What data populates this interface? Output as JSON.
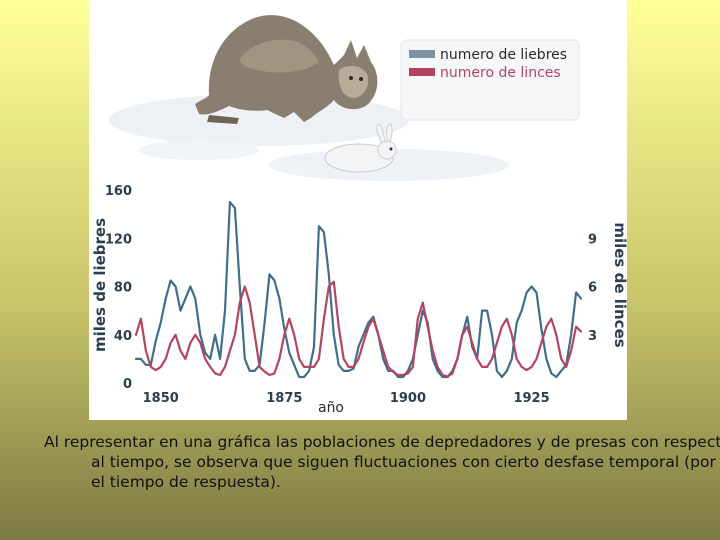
{
  "caption": "Al representar en una gráfica las poblaciones de depredadores y de presas con respecto al tiempo, se observa que siguen fluctuaciones con cierto desfase temporal (por el tiempo de respuesta).",
  "chart_data": {
    "type": "line",
    "title": "",
    "xlabel": "año",
    "ylabel": "miles de liebres",
    "y2label": "miles de linces",
    "xlim": [
      1845,
      1935
    ],
    "ylim": [
      0,
      160
    ],
    "y2lim": [
      0,
      12
    ],
    "xticks": [
      1850,
      1875,
      1900,
      1925
    ],
    "yticks": [
      0,
      40,
      80,
      120,
      160
    ],
    "y2ticks": [
      3,
      6,
      9
    ],
    "grid": false,
    "legend": "top-right",
    "series": [
      {
        "name": "numero de liebres",
        "axis": "left",
        "color": "#3f6f8c",
        "x": [
          1845,
          1846,
          1847,
          1848,
          1849,
          1850,
          1851,
          1852,
          1853,
          1854,
          1855,
          1856,
          1857,
          1858,
          1859,
          1860,
          1861,
          1862,
          1863,
          1864,
          1865,
          1866,
          1867,
          1868,
          1869,
          1870,
          1871,
          1872,
          1873,
          1874,
          1875,
          1876,
          1877,
          1878,
          1879,
          1880,
          1881,
          1882,
          1883,
          1884,
          1885,
          1886,
          1887,
          1888,
          1889,
          1890,
          1891,
          1892,
          1893,
          1894,
          1895,
          1896,
          1897,
          1898,
          1899,
          1900,
          1901,
          1902,
          1903,
          1904,
          1905,
          1906,
          1907,
          1908,
          1909,
          1910,
          1911,
          1912,
          1913,
          1914,
          1915,
          1916,
          1917,
          1918,
          1919,
          1920,
          1921,
          1922,
          1923,
          1924,
          1925,
          1926,
          1927,
          1928,
          1929,
          1930,
          1931,
          1932,
          1933,
          1934,
          1935
        ],
        "values": [
          20,
          20,
          15,
          15,
          35,
          50,
          70,
          85,
          80,
          60,
          70,
          80,
          70,
          40,
          25,
          20,
          40,
          20,
          60,
          150,
          145,
          80,
          20,
          10,
          10,
          15,
          50,
          90,
          85,
          70,
          45,
          25,
          15,
          5,
          5,
          10,
          30,
          130,
          125,
          90,
          40,
          15,
          10,
          10,
          12,
          30,
          40,
          50,
          55,
          40,
          20,
          10,
          10,
          5,
          5,
          10,
          20,
          40,
          60,
          50,
          20,
          10,
          5,
          5,
          10,
          20,
          40,
          55,
          30,
          20,
          60,
          60,
          40,
          10,
          5,
          10,
          20,
          50,
          60,
          75,
          80,
          75,
          45,
          20,
          8,
          5,
          10,
          15,
          40,
          75,
          70
        ]
      },
      {
        "name": "numero de linces",
        "axis": "right",
        "color": "#b5445f",
        "x": [
          1845,
          1846,
          1847,
          1848,
          1849,
          1850,
          1851,
          1852,
          1853,
          1854,
          1855,
          1856,
          1857,
          1858,
          1859,
          1860,
          1861,
          1862,
          1863,
          1864,
          1865,
          1866,
          1867,
          1868,
          1869,
          1870,
          1871,
          1872,
          1873,
          1874,
          1875,
          1876,
          1877,
          1878,
          1879,
          1880,
          1881,
          1882,
          1883,
          1884,
          1885,
          1886,
          1887,
          1888,
          1889,
          1890,
          1891,
          1892,
          1893,
          1894,
          1895,
          1896,
          1897,
          1898,
          1899,
          1900,
          1901,
          1902,
          1903,
          1904,
          1905,
          1906,
          1907,
          1908,
          1909,
          1910,
          1911,
          1912,
          1913,
          1914,
          1915,
          1916,
          1917,
          1918,
          1919,
          1920,
          1921,
          1922,
          1923,
          1924,
          1925,
          1926,
          1927,
          1928,
          1929,
          1930,
          1931,
          1932,
          1933,
          1934,
          1935
        ],
        "values": [
          3,
          4,
          2,
          1,
          0.8,
          1,
          1.5,
          2.5,
          3,
          2,
          1.5,
          2.5,
          3,
          2.5,
          1.5,
          1,
          0.6,
          0.5,
          1,
          2,
          3,
          5,
          6,
          5,
          3,
          1,
          0.7,
          0.5,
          0.6,
          1.5,
          3,
          4,
          3,
          1.5,
          1,
          1,
          1,
          1.5,
          4,
          6,
          6.3,
          3.5,
          1.5,
          1,
          1,
          1.5,
          2.5,
          3.5,
          4,
          3,
          2,
          1,
          0.7,
          0.5,
          0.5,
          0.6,
          1,
          4,
          5,
          3.5,
          2,
          1,
          0.5,
          0.4,
          0.6,
          1.5,
          3,
          3.5,
          2.5,
          1.5,
          1,
          1,
          1.5,
          2.5,
          3.5,
          4,
          3,
          1.5,
          1,
          0.8,
          1,
          1.5,
          2.5,
          3.5,
          4,
          3,
          1.5,
          1,
          2,
          3.5,
          3.2
        ]
      }
    ]
  }
}
